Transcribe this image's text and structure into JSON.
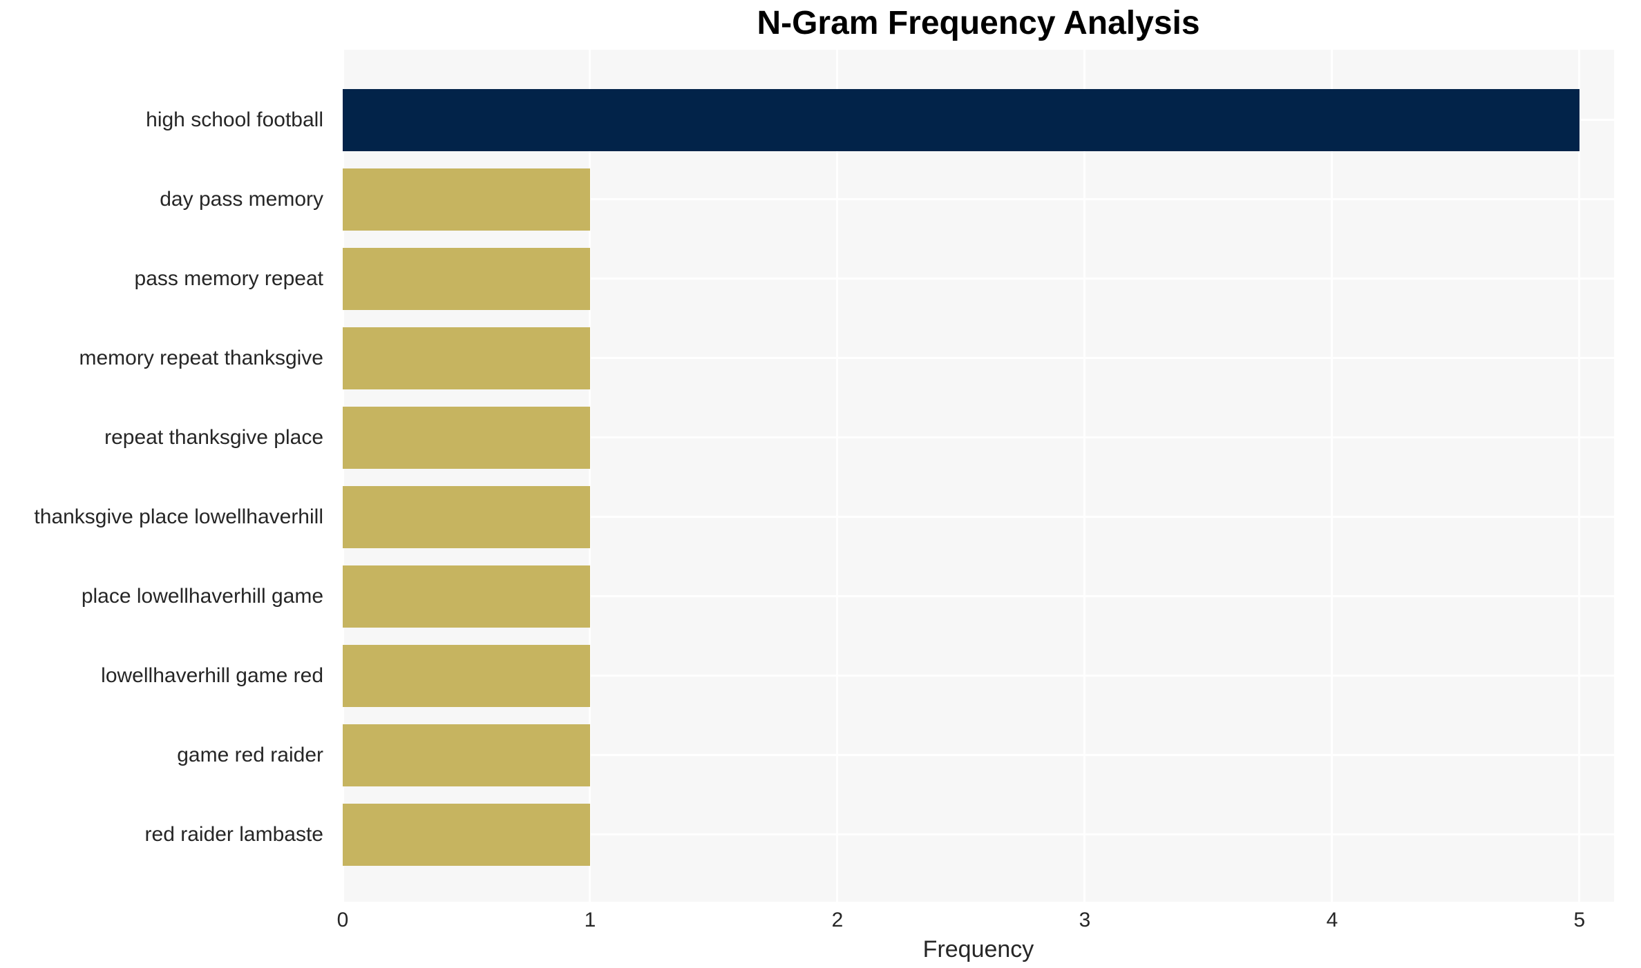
{
  "chart_data": {
    "type": "bar",
    "orientation": "horizontal",
    "title": "N-Gram Frequency Analysis",
    "xlabel": "Frequency",
    "ylabel": "",
    "categories": [
      "high school football",
      "day pass memory",
      "pass memory repeat",
      "memory repeat thanksgive",
      "repeat thanksgive place",
      "thanksgive place lowellhaverhill",
      "place lowellhaverhill game",
      "lowellhaverhill game red",
      "game red raider",
      "red raider lambaste"
    ],
    "values": [
      5,
      1,
      1,
      1,
      1,
      1,
      1,
      1,
      1,
      1
    ],
    "xticks": [
      0,
      1,
      2,
      3,
      4,
      5
    ],
    "xlim": [
      0,
      5.14
    ],
    "grid": true,
    "legend": false,
    "plot_background": "#f7f7f7",
    "gridline_color": "#ffffff",
    "highlight_color": "#022349",
    "base_color": "#c6b460",
    "bar_colors": [
      "#022349",
      "#c6b460",
      "#c6b460",
      "#c6b460",
      "#c6b460",
      "#c6b460",
      "#c6b460",
      "#c6b460",
      "#c6b460",
      "#c6b460"
    ],
    "text_color": "#262626",
    "title_color": "#000000"
  }
}
